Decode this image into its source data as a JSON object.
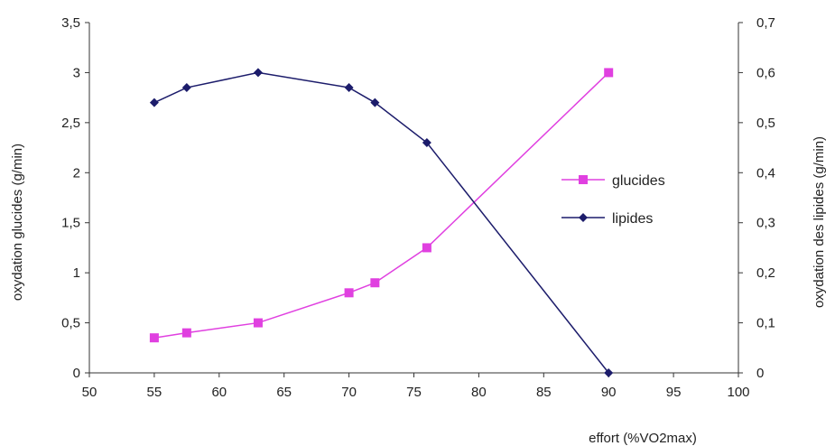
{
  "chart_data": {
    "type": "line",
    "title": "",
    "xlabel": "effort (%VO2max)",
    "ylabel_left": "oxydation glucides (g/min)",
    "ylabel_right": "oxydation des lipides (g/min)",
    "xlim": [
      50,
      100
    ],
    "x_ticks": [
      "50",
      "55",
      "60",
      "65",
      "70",
      "75",
      "80",
      "85",
      "90",
      "95",
      "100"
    ],
    "ylim_left": [
      0,
      3.5
    ],
    "y_ticks_left": [
      "0",
      "0,5",
      "1",
      "1,5",
      "2",
      "2,5",
      "3",
      "3,5"
    ],
    "ylim_right": [
      0,
      0.7
    ],
    "y_ticks_right": [
      "0",
      "0,1",
      "0,2",
      "0,3",
      "0,4",
      "0,5",
      "0,6",
      "0,7"
    ],
    "grid": false,
    "legend_position": "right",
    "series": [
      {
        "name": "glucides",
        "axis": "left",
        "color": "#e040e0",
        "marker": "square",
        "points": [
          {
            "x": 55,
            "y": 0.35
          },
          {
            "x": 57.5,
            "y": 0.4
          },
          {
            "x": 63,
            "y": 0.5
          },
          {
            "x": 70,
            "y": 0.8
          },
          {
            "x": 72,
            "y": 0.9
          },
          {
            "x": 76,
            "y": 1.25
          },
          {
            "x": 90,
            "y": 3.0
          }
        ]
      },
      {
        "name": "lipides",
        "axis": "right",
        "color": "#1c1c6b",
        "marker": "diamond",
        "points": [
          {
            "x": 55,
            "y": 0.54
          },
          {
            "x": 57.5,
            "y": 0.57
          },
          {
            "x": 63,
            "y": 0.6
          },
          {
            "x": 70,
            "y": 0.57
          },
          {
            "x": 72,
            "y": 0.54
          },
          {
            "x": 76,
            "y": 0.46
          },
          {
            "x": 90,
            "y": 0.0
          }
        ]
      }
    ]
  }
}
